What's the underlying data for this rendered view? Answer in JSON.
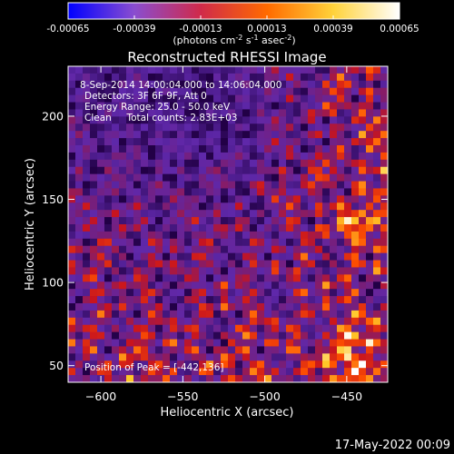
{
  "colorbar": {
    "tick_labels": [
      "-0.00065",
      "-0.00039",
      "-0.00013",
      "0.00013",
      "0.00039",
      "0.00065"
    ],
    "range": [
      -0.00065,
      0.00065
    ],
    "units_parts": {
      "a": "(photons cm",
      "sup1": "-2",
      "b": " s",
      "sup2": "-1",
      "c": " asec",
      "sup3": "-2",
      "d": ")"
    },
    "colormap": [
      "#0000ff",
      "#8a4dd0",
      "#d02a4a",
      "#ff6a00",
      "#ffd23a",
      "#ffffff"
    ]
  },
  "chart_data": {
    "type": "heatmap",
    "title": "Reconstructed RHESSI Image",
    "xlabel": "Heliocentric X (arcsec)",
    "ylabel": "Heliocentric Y (arcsec)",
    "xlim": [
      -620,
      -425
    ],
    "ylim": [
      40,
      230
    ],
    "x_ticks": [
      -600,
      -550,
      -500,
      -450
    ],
    "y_ticks": [
      50,
      100,
      150,
      200
    ],
    "annotations": [
      "8-Sep-2014 14:00:04.000 to 14:06:04.000",
      "Detectors: 3F 6F 9F, Att 0",
      "Energy Range: 25.0 - 50.0 keV",
      "Clean     Total counts: 2.83E+03"
    ],
    "peak_label": "Position of Peak = [-442,136]",
    "peak_position": [
      -442,
      136
    ]
  },
  "footer": {
    "timestamp": "17-May-2022 00:09"
  }
}
